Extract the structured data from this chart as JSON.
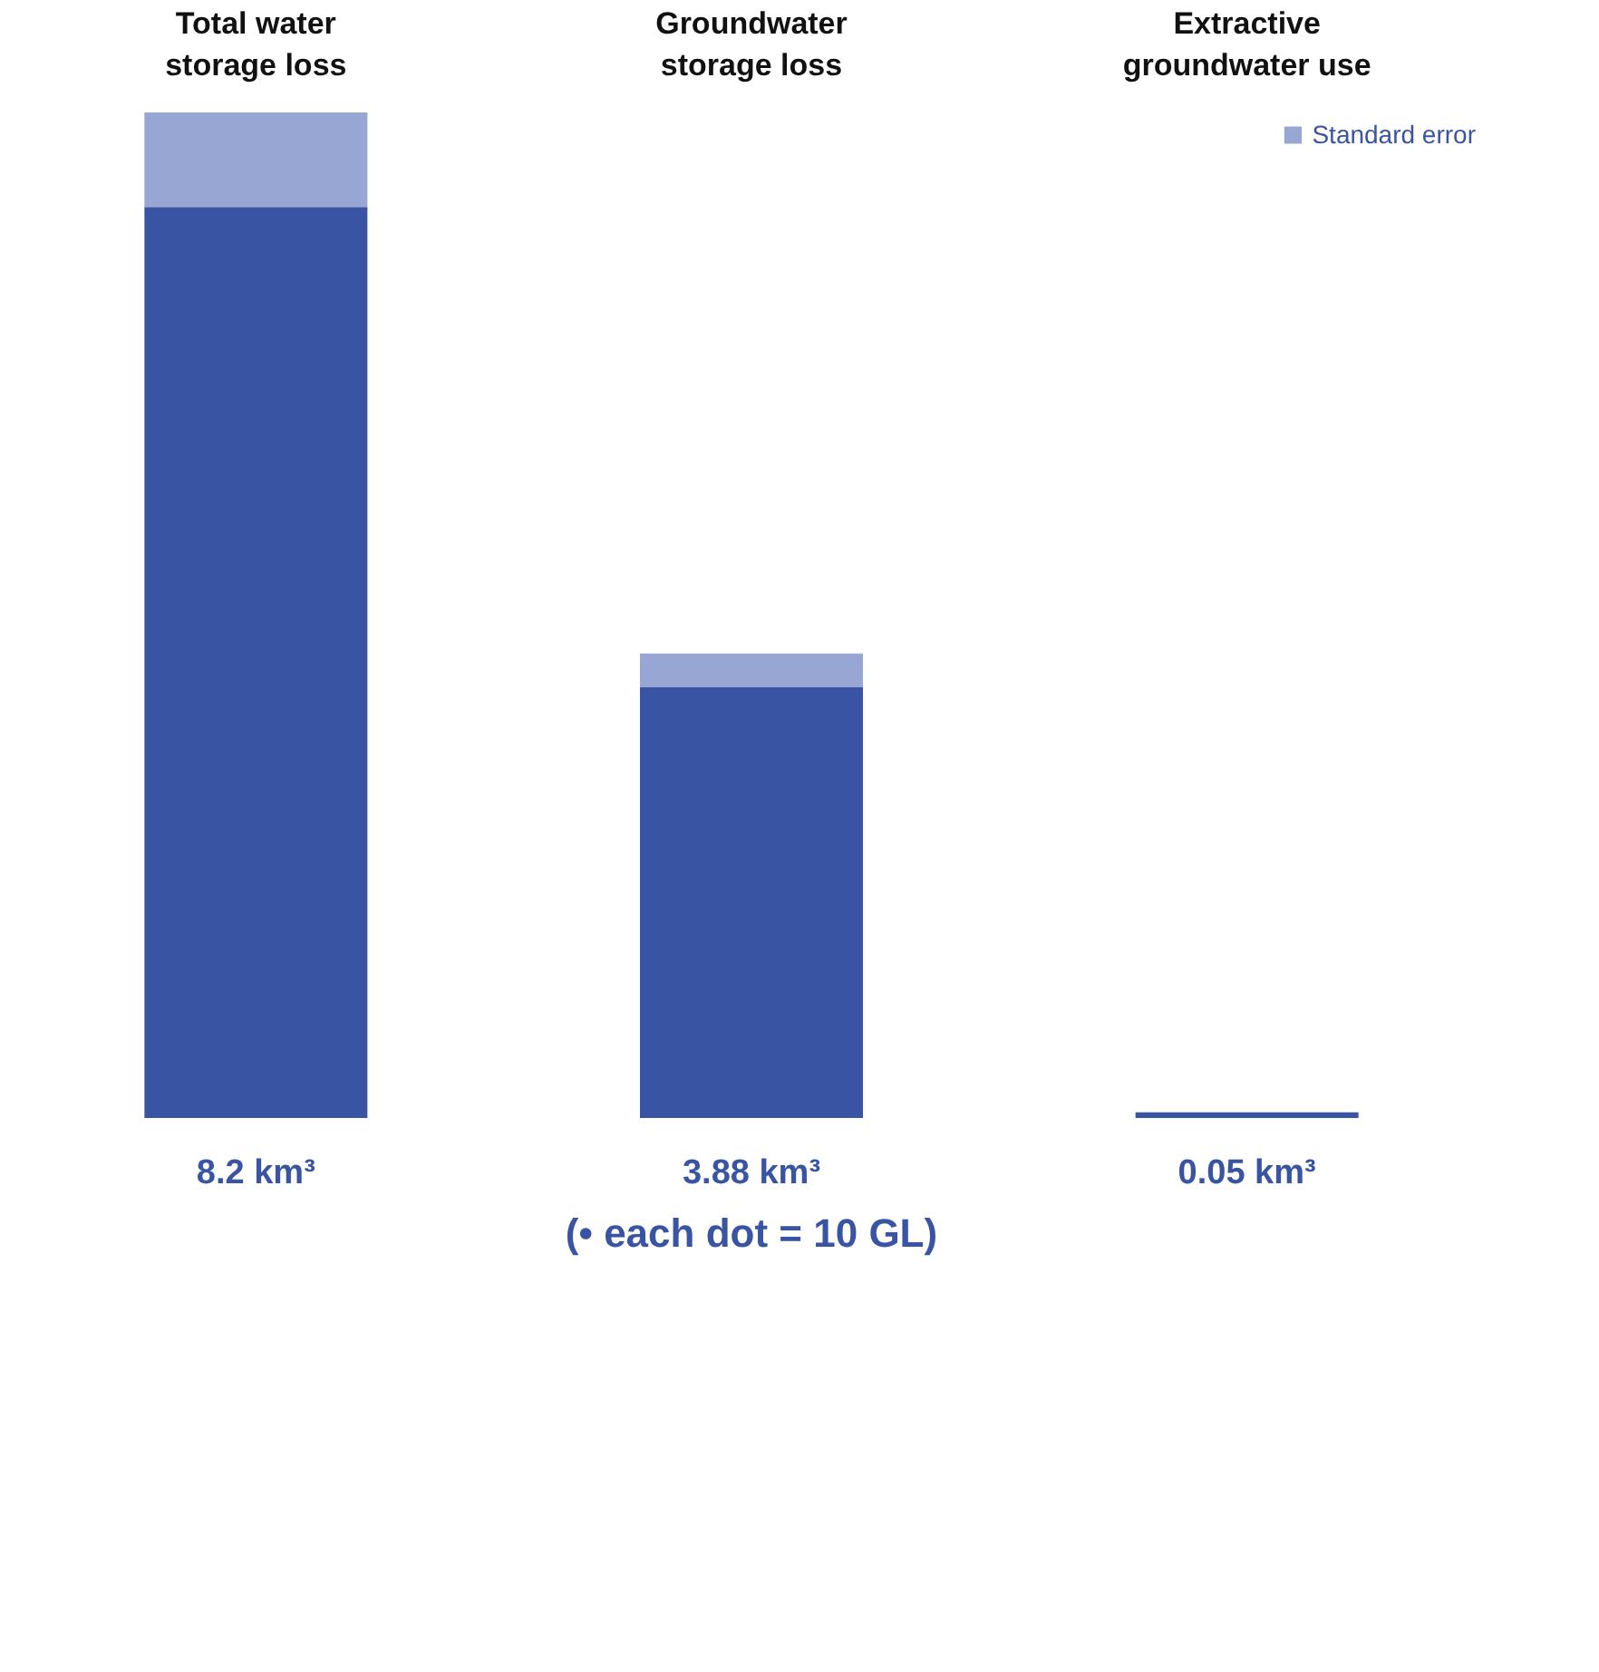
{
  "chart_data": {
    "type": "bar",
    "stacked": true,
    "categories": [
      "Total water\nstorage loss",
      "Groundwater\nstorage loss",
      "Extractive\ngroundwater use"
    ],
    "series": [
      {
        "color": "#3a54a4",
        "values": [
          8.2,
          3.88,
          0.05
        ],
        "value_labels": [
          "8.2 km³",
          "3.88 km³",
          "0.05 km³"
        ]
      },
      {
        "name": "Standard error",
        "color": "#97a6d3",
        "values": [
          0.85,
          0.3,
          0
        ]
      }
    ],
    "annotations": [
      "(• each dot = 10 GL)"
    ],
    "legend": "top right",
    "grid": false
  }
}
